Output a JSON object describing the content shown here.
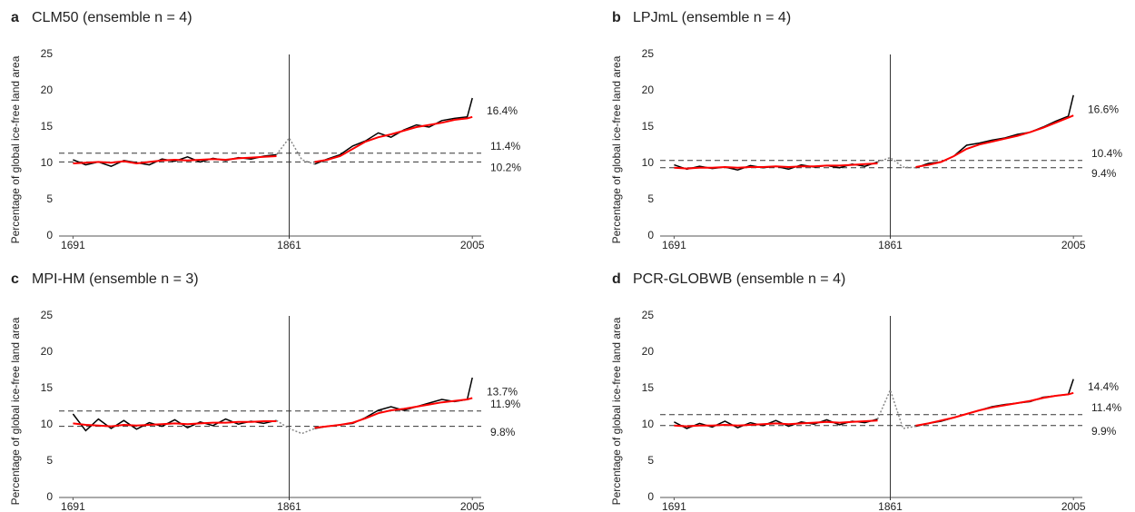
{
  "chart_data": [
    {
      "type": "line",
      "letter": "a",
      "title": "CLM50 (ensemble n = 4)",
      "ylabel": "Percentage of global ice-free land area",
      "x": [
        1691,
        1701,
        1711,
        1721,
        1731,
        1741,
        1751,
        1761,
        1771,
        1781,
        1791,
        1801,
        1811,
        1821,
        1831,
        1841,
        1851,
        1861,
        1871,
        1881,
        1891,
        1901,
        1911,
        1921,
        1931,
        1941,
        1951,
        1961,
        1971,
        1981,
        1991,
        2001,
        2005
      ],
      "xlim": [
        1680,
        2012
      ],
      "xticks": [
        1691,
        1861,
        2005
      ],
      "ylim": [
        0,
        25
      ],
      "yticks": [
        0,
        5,
        10,
        15,
        20,
        25
      ],
      "vline": 1861,
      "series": [
        {
          "color": "#000000",
          "values": [
            10.5,
            9.8,
            10.2,
            9.6,
            10.4,
            10.1,
            9.8,
            10.6,
            10.3,
            10.9,
            10.2,
            10.7,
            10.4,
            10.8,
            10.6,
            11.0,
            11.2,
            null,
            null,
            9.9,
            10.6,
            11.2,
            12.4,
            13.1,
            14.2,
            13.6,
            14.6,
            15.3,
            15.0,
            15.9,
            16.2,
            16.4,
            19.0
          ]
        },
        {
          "color": "#888888",
          "values": [
            null,
            null,
            null,
            null,
            null,
            null,
            null,
            null,
            null,
            null,
            null,
            null,
            null,
            null,
            null,
            null,
            11.2,
            13.5,
            10.5,
            9.9,
            null,
            null,
            null,
            null,
            null,
            null,
            null,
            null,
            null,
            null,
            null,
            null,
            null
          ]
        },
        {
          "color": "#ff0000",
          "values": [
            10.0,
            10.1,
            10.2,
            10.1,
            10.3,
            10.0,
            10.2,
            10.4,
            10.5,
            10.4,
            10.5,
            10.6,
            10.5,
            10.7,
            10.8,
            10.9,
            11.0,
            null,
            null,
            10.2,
            10.5,
            11.0,
            12.0,
            13.0,
            13.6,
            14.0,
            14.5,
            15.0,
            15.3,
            15.6,
            16.0,
            16.2,
            16.4
          ]
        }
      ],
      "ref_lines": [
        {
          "value": 11.4,
          "label": "11.4%"
        },
        {
          "value": 10.2,
          "label": "10.2%"
        }
      ],
      "end_label": {
        "value": 16.4,
        "label": "16.4%",
        "color": "#ff0000"
      }
    },
    {
      "type": "line",
      "letter": "b",
      "title": "LPJmL (ensemble n = 4)",
      "ylabel": "Percentage of global ice-free land area",
      "x": [
        1691,
        1701,
        1711,
        1721,
        1731,
        1741,
        1751,
        1761,
        1771,
        1781,
        1791,
        1801,
        1811,
        1821,
        1831,
        1841,
        1851,
        1861,
        1871,
        1881,
        1891,
        1901,
        1911,
        1921,
        1931,
        1941,
        1951,
        1961,
        1971,
        1981,
        1991,
        2001,
        2005
      ],
      "xlim": [
        1680,
        2012
      ],
      "xticks": [
        1691,
        1861,
        2005
      ],
      "ylim": [
        0,
        25
      ],
      "yticks": [
        0,
        5,
        10,
        15,
        20,
        25
      ],
      "vline": 1861,
      "series": [
        {
          "color": "#000000",
          "values": [
            9.8,
            9.2,
            9.6,
            9.3,
            9.5,
            9.1,
            9.7,
            9.4,
            9.6,
            9.2,
            9.8,
            9.5,
            9.7,
            9.4,
            9.9,
            9.6,
            10.2,
            null,
            null,
            9.4,
            10.0,
            10.2,
            11.0,
            12.5,
            12.8,
            13.2,
            13.5,
            14.0,
            14.3,
            15.0,
            15.8,
            16.5,
            19.4
          ]
        },
        {
          "color": "#888888",
          "values": [
            null,
            null,
            null,
            null,
            null,
            null,
            null,
            null,
            null,
            null,
            null,
            null,
            null,
            null,
            null,
            null,
            10.2,
            10.8,
            9.5,
            9.4,
            null,
            null,
            null,
            null,
            null,
            null,
            null,
            null,
            null,
            null,
            null,
            null,
            null
          ]
        },
        {
          "color": "#ff0000",
          "values": [
            9.4,
            9.3,
            9.4,
            9.4,
            9.5,
            9.4,
            9.5,
            9.5,
            9.6,
            9.5,
            9.6,
            9.6,
            9.7,
            9.7,
            9.8,
            9.9,
            10.0,
            null,
            null,
            9.5,
            9.8,
            10.2,
            11.0,
            12.0,
            12.6,
            13.0,
            13.4,
            13.8,
            14.3,
            14.9,
            15.6,
            16.3,
            16.6
          ]
        }
      ],
      "ref_lines": [
        {
          "value": 10.4,
          "label": "10.4%"
        },
        {
          "value": 9.4,
          "label": "9.4%"
        }
      ],
      "end_label": {
        "value": 16.6,
        "label": "16.6%",
        "color": "#ff0000"
      }
    },
    {
      "type": "line",
      "letter": "c",
      "title": "MPI-HM (ensemble n = 3)",
      "ylabel": "Percentage of global ice-free land area",
      "x": [
        1691,
        1701,
        1711,
        1721,
        1731,
        1741,
        1751,
        1761,
        1771,
        1781,
        1791,
        1801,
        1811,
        1821,
        1831,
        1841,
        1851,
        1861,
        1871,
        1881,
        1891,
        1901,
        1911,
        1921,
        1931,
        1941,
        1951,
        1961,
        1971,
        1981,
        1991,
        2001,
        2005
      ],
      "xlim": [
        1680,
        2012
      ],
      "xticks": [
        1691,
        1861,
        2005
      ],
      "ylim": [
        0,
        25
      ],
      "yticks": [
        0,
        5,
        10,
        15,
        20,
        25
      ],
      "vline": 1861,
      "series": [
        {
          "color": "#000000",
          "values": [
            11.5,
            9.2,
            10.8,
            9.5,
            10.6,
            9.4,
            10.3,
            9.8,
            10.7,
            9.6,
            10.4,
            9.9,
            10.8,
            10.1,
            10.5,
            10.2,
            10.6,
            null,
            null,
            9.5,
            9.8,
            10.0,
            10.2,
            11.0,
            12.0,
            12.5,
            12.0,
            12.5,
            13.0,
            13.5,
            13.2,
            13.5,
            16.5
          ]
        },
        {
          "color": "#888888",
          "values": [
            null,
            null,
            null,
            null,
            null,
            null,
            null,
            null,
            null,
            null,
            null,
            null,
            null,
            null,
            null,
            null,
            10.6,
            9.5,
            8.8,
            9.5,
            null,
            null,
            null,
            null,
            null,
            null,
            null,
            null,
            null,
            null,
            null,
            null,
            null
          ]
        },
        {
          "color": "#ff0000",
          "values": [
            10.2,
            10.0,
            9.9,
            9.8,
            10.0,
            9.9,
            10.0,
            10.1,
            10.2,
            10.1,
            10.2,
            10.3,
            10.3,
            10.4,
            10.4,
            10.5,
            10.5,
            null,
            null,
            9.6,
            9.8,
            10.0,
            10.3,
            10.9,
            11.6,
            12.0,
            12.2,
            12.5,
            12.8,
            13.1,
            13.3,
            13.5,
            13.7
          ]
        }
      ],
      "ref_lines": [
        {
          "value": 11.9,
          "label": "11.9%"
        },
        {
          "value": 9.8,
          "label": "9.8%"
        }
      ],
      "end_label": {
        "value": 13.7,
        "label": "13.7%",
        "color": "#ff0000"
      }
    },
    {
      "type": "line",
      "letter": "d",
      "title": "PCR-GLOBWB (ensemble n = 4)",
      "ylabel": "Percentage of global ice-free land area",
      "x": [
        1691,
        1701,
        1711,
        1721,
        1731,
        1741,
        1751,
        1761,
        1771,
        1781,
        1791,
        1801,
        1811,
        1821,
        1831,
        1841,
        1851,
        1861,
        1871,
        1881,
        1891,
        1901,
        1911,
        1921,
        1931,
        1941,
        1951,
        1961,
        1971,
        1981,
        1991,
        2001,
        2005
      ],
      "xlim": [
        1680,
        2012
      ],
      "xticks": [
        1691,
        1861,
        2005
      ],
      "ylim": [
        0,
        25
      ],
      "yticks": [
        0,
        5,
        10,
        15,
        20,
        25
      ],
      "vline": 1861,
      "series": [
        {
          "color": "#000000",
          "values": [
            10.4,
            9.5,
            10.2,
            9.7,
            10.5,
            9.6,
            10.3,
            9.9,
            10.6,
            9.8,
            10.4,
            10.1,
            10.7,
            10.0,
            10.5,
            10.3,
            10.8,
            null,
            null,
            9.8,
            10.2,
            10.5,
            11.0,
            11.5,
            12.0,
            12.5,
            12.8,
            13.0,
            13.2,
            13.8,
            14.0,
            14.2,
            16.3
          ]
        },
        {
          "color": "#888888",
          "values": [
            null,
            null,
            null,
            null,
            null,
            null,
            null,
            null,
            null,
            null,
            null,
            null,
            null,
            null,
            null,
            null,
            10.8,
            14.8,
            9.5,
            9.8,
            null,
            null,
            null,
            null,
            null,
            null,
            null,
            null,
            null,
            null,
            null,
            null,
            null
          ]
        },
        {
          "color": "#ff0000",
          "values": [
            9.9,
            9.8,
            9.9,
            9.9,
            10.0,
            9.9,
            10.0,
            10.1,
            10.2,
            10.1,
            10.2,
            10.3,
            10.4,
            10.3,
            10.4,
            10.5,
            10.6,
            null,
            null,
            9.9,
            10.2,
            10.6,
            11.0,
            11.5,
            12.0,
            12.4,
            12.7,
            13.0,
            13.3,
            13.7,
            14.0,
            14.2,
            14.4
          ]
        }
      ],
      "ref_lines": [
        {
          "value": 11.4,
          "label": "11.4%"
        },
        {
          "value": 9.9,
          "label": "9.9%"
        }
      ],
      "end_label": {
        "value": 14.4,
        "label": "14.4%",
        "color": "#ff0000"
      }
    }
  ]
}
